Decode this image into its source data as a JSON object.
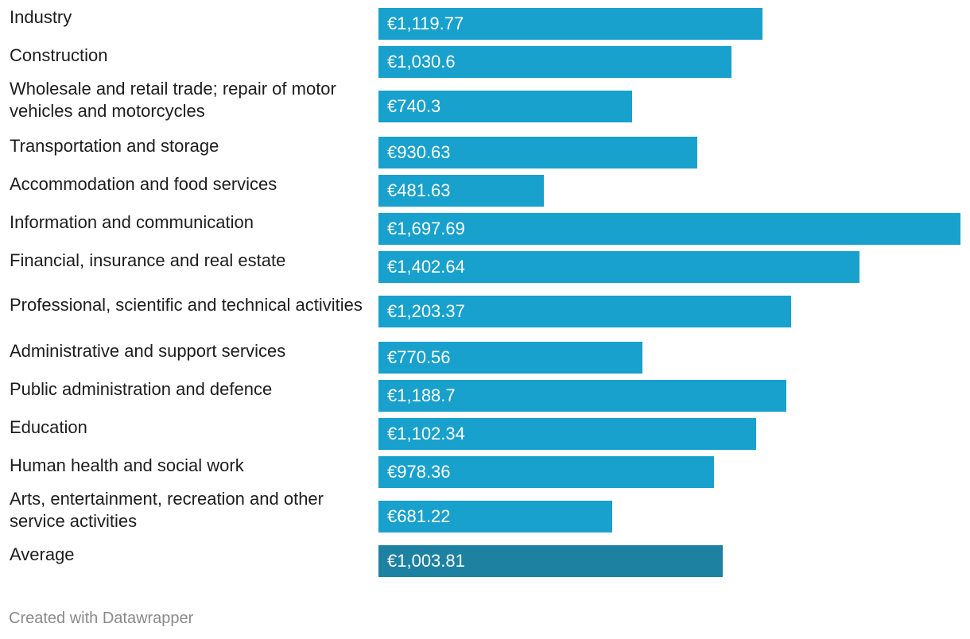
{
  "chart_data": {
    "type": "bar",
    "orientation": "horizontal",
    "categories": [
      "Industry",
      "Construction",
      "Wholesale and retail trade; repair of motor vehicles and motorcycles",
      "Transportation and storage",
      "Accommodation and food services",
      "Information and communication",
      "Financial, insurance and real estate",
      "Professional, scientific and technical activities",
      "Administrative and support services",
      "Public administration and defence",
      "Education",
      "Human health and social work",
      "Arts, entertainment, recreation and other service activities",
      "Average"
    ],
    "values": [
      1119.77,
      1030.6,
      740.3,
      930.63,
      481.63,
      1697.69,
      1402.64,
      1203.37,
      770.56,
      1188.7,
      1102.34,
      978.36,
      681.22,
      1003.81
    ],
    "value_labels": [
      "€1,119.77",
      "€1,030.6",
      "€740.3",
      "€930.63",
      "€481.63",
      "€1,697.69",
      "€1,402.64",
      "€1,203.37",
      "€770.56",
      "€1,188.7",
      "€1,102.34",
      "€978.36",
      "€681.22",
      "€1,003.81"
    ],
    "highlighted_category": "Average",
    "colors": {
      "bar": "#18a1cd",
      "highlight_bar": "#1d81a2",
      "value_label": "#ffffff"
    },
    "xlim": [
      0,
      1697.69
    ],
    "grid": false,
    "legend": "none",
    "title": "",
    "xlabel": "",
    "ylabel": ""
  },
  "footer": {
    "credit": "Created with Datawrapper"
  }
}
